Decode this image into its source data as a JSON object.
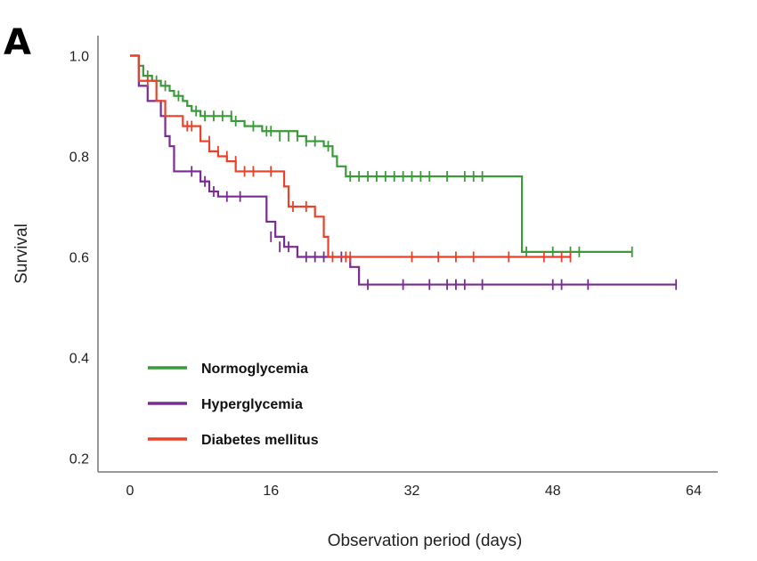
{
  "chart_data": {
    "type": "line",
    "panel_label": "A",
    "title": "",
    "xlabel": "Observation period (days)",
    "ylabel": "Survival",
    "xlim": [
      -2,
      67
    ],
    "ylim": [
      0.15,
      1.05
    ],
    "x_ticks": [
      0,
      16,
      32,
      48,
      64
    ],
    "x_tick_labels": [
      "0",
      "16",
      "32",
      "48",
      "64"
    ],
    "y_ticks": [
      0.2,
      0.4,
      0.6,
      0.8,
      1.0
    ],
    "y_tick_labels": [
      "0.2",
      "0.4",
      "0.6",
      "0.8",
      "1.0"
    ],
    "grid": false,
    "legend_position": "bottom-left",
    "series": [
      {
        "name": "Normoglycemia",
        "color": "#3a9a3a",
        "steps": [
          [
            0,
            1.0
          ],
          [
            1,
            0.98
          ],
          [
            1.5,
            0.96
          ],
          [
            2.5,
            0.95
          ],
          [
            3.5,
            0.94
          ],
          [
            4.5,
            0.93
          ],
          [
            5,
            0.92
          ],
          [
            6,
            0.91
          ],
          [
            6.5,
            0.9
          ],
          [
            7,
            0.89
          ],
          [
            8,
            0.88
          ],
          [
            10,
            0.88
          ],
          [
            11.5,
            0.87
          ],
          [
            13,
            0.86
          ],
          [
            15,
            0.85
          ],
          [
            19,
            0.84
          ],
          [
            20,
            0.83
          ],
          [
            22,
            0.82
          ],
          [
            23,
            0.8
          ],
          [
            23.5,
            0.78
          ],
          [
            24.5,
            0.76
          ],
          [
            44,
            0.76
          ],
          [
            44.5,
            0.61
          ],
          [
            57,
            0.61
          ]
        ],
        "censored": [
          [
            1,
            0.98
          ],
          [
            2,
            0.96
          ],
          [
            3,
            0.95
          ],
          [
            4,
            0.94
          ],
          [
            5.5,
            0.92
          ],
          [
            7.5,
            0.89
          ],
          [
            8.5,
            0.88
          ],
          [
            9.5,
            0.88
          ],
          [
            10.5,
            0.88
          ],
          [
            11.5,
            0.88
          ],
          [
            12,
            0.87
          ],
          [
            14,
            0.86
          ],
          [
            15.5,
            0.85
          ],
          [
            16,
            0.85
          ],
          [
            17,
            0.84
          ],
          [
            18,
            0.84
          ],
          [
            19,
            0.84
          ],
          [
            20,
            0.83
          ],
          [
            21,
            0.83
          ],
          [
            22.5,
            0.82
          ],
          [
            25,
            0.76
          ],
          [
            26,
            0.76
          ],
          [
            27,
            0.76
          ],
          [
            28,
            0.76
          ],
          [
            29,
            0.76
          ],
          [
            30,
            0.76
          ],
          [
            31,
            0.76
          ],
          [
            32,
            0.76
          ],
          [
            33,
            0.76
          ],
          [
            34,
            0.76
          ],
          [
            36,
            0.76
          ],
          [
            38,
            0.76
          ],
          [
            39,
            0.76
          ],
          [
            40,
            0.76
          ],
          [
            45,
            0.61
          ],
          [
            48,
            0.61
          ],
          [
            50,
            0.61
          ],
          [
            51,
            0.61
          ],
          [
            57,
            0.61
          ]
        ]
      },
      {
        "name": "Hyperglycemia",
        "color": "#7a2b94",
        "steps": [
          [
            0,
            1.0
          ],
          [
            1,
            0.94
          ],
          [
            2,
            0.91
          ],
          [
            3.5,
            0.88
          ],
          [
            4,
            0.84
          ],
          [
            4.5,
            0.82
          ],
          [
            5,
            0.77
          ],
          [
            7,
            0.77
          ],
          [
            8,
            0.75
          ],
          [
            9,
            0.73
          ],
          [
            10,
            0.72
          ],
          [
            15,
            0.72
          ],
          [
            15.5,
            0.67
          ],
          [
            16.5,
            0.64
          ],
          [
            17.5,
            0.62
          ],
          [
            19,
            0.6
          ],
          [
            25,
            0.58
          ],
          [
            26,
            0.545
          ],
          [
            62,
            0.545
          ]
        ],
        "censored": [
          [
            7,
            0.77
          ],
          [
            8.5,
            0.75
          ],
          [
            9.5,
            0.73
          ],
          [
            11,
            0.72
          ],
          [
            12.5,
            0.72
          ],
          [
            16,
            0.64
          ],
          [
            17,
            0.62
          ],
          [
            18,
            0.62
          ],
          [
            20,
            0.6
          ],
          [
            21,
            0.6
          ],
          [
            22,
            0.6
          ],
          [
            24,
            0.6
          ],
          [
            27,
            0.545
          ],
          [
            31,
            0.545
          ],
          [
            34,
            0.545
          ],
          [
            36,
            0.545
          ],
          [
            37,
            0.545
          ],
          [
            38,
            0.545
          ],
          [
            40,
            0.545
          ],
          [
            48,
            0.545
          ],
          [
            49,
            0.545
          ],
          [
            52,
            0.545
          ],
          [
            62,
            0.545
          ]
        ]
      },
      {
        "name": "Diabetes mellitus",
        "color": "#e8432a",
        "steps": [
          [
            0,
            1.0
          ],
          [
            1,
            0.95
          ],
          [
            3,
            0.91
          ],
          [
            4,
            0.88
          ],
          [
            6,
            0.86
          ],
          [
            8,
            0.83
          ],
          [
            9,
            0.81
          ],
          [
            10,
            0.8
          ],
          [
            11,
            0.79
          ],
          [
            12,
            0.77
          ],
          [
            17,
            0.77
          ],
          [
            17.5,
            0.74
          ],
          [
            18,
            0.7
          ],
          [
            21,
            0.68
          ],
          [
            22,
            0.64
          ],
          [
            22.5,
            0.6
          ],
          [
            50,
            0.6
          ]
        ],
        "censored": [
          [
            2,
            0.95
          ],
          [
            6.5,
            0.86
          ],
          [
            7,
            0.86
          ],
          [
            9,
            0.83
          ],
          [
            10,
            0.81
          ],
          [
            11,
            0.8
          ],
          [
            12,
            0.79
          ],
          [
            13,
            0.77
          ],
          [
            14,
            0.77
          ],
          [
            16,
            0.77
          ],
          [
            18.5,
            0.7
          ],
          [
            20,
            0.7
          ],
          [
            23,
            0.6
          ],
          [
            24.5,
            0.6
          ],
          [
            25,
            0.6
          ],
          [
            32,
            0.6
          ],
          [
            35,
            0.6
          ],
          [
            37,
            0.6
          ],
          [
            39,
            0.6
          ],
          [
            43,
            0.6
          ],
          [
            47,
            0.6
          ],
          [
            49,
            0.6
          ],
          [
            50,
            0.6
          ]
        ]
      }
    ]
  }
}
